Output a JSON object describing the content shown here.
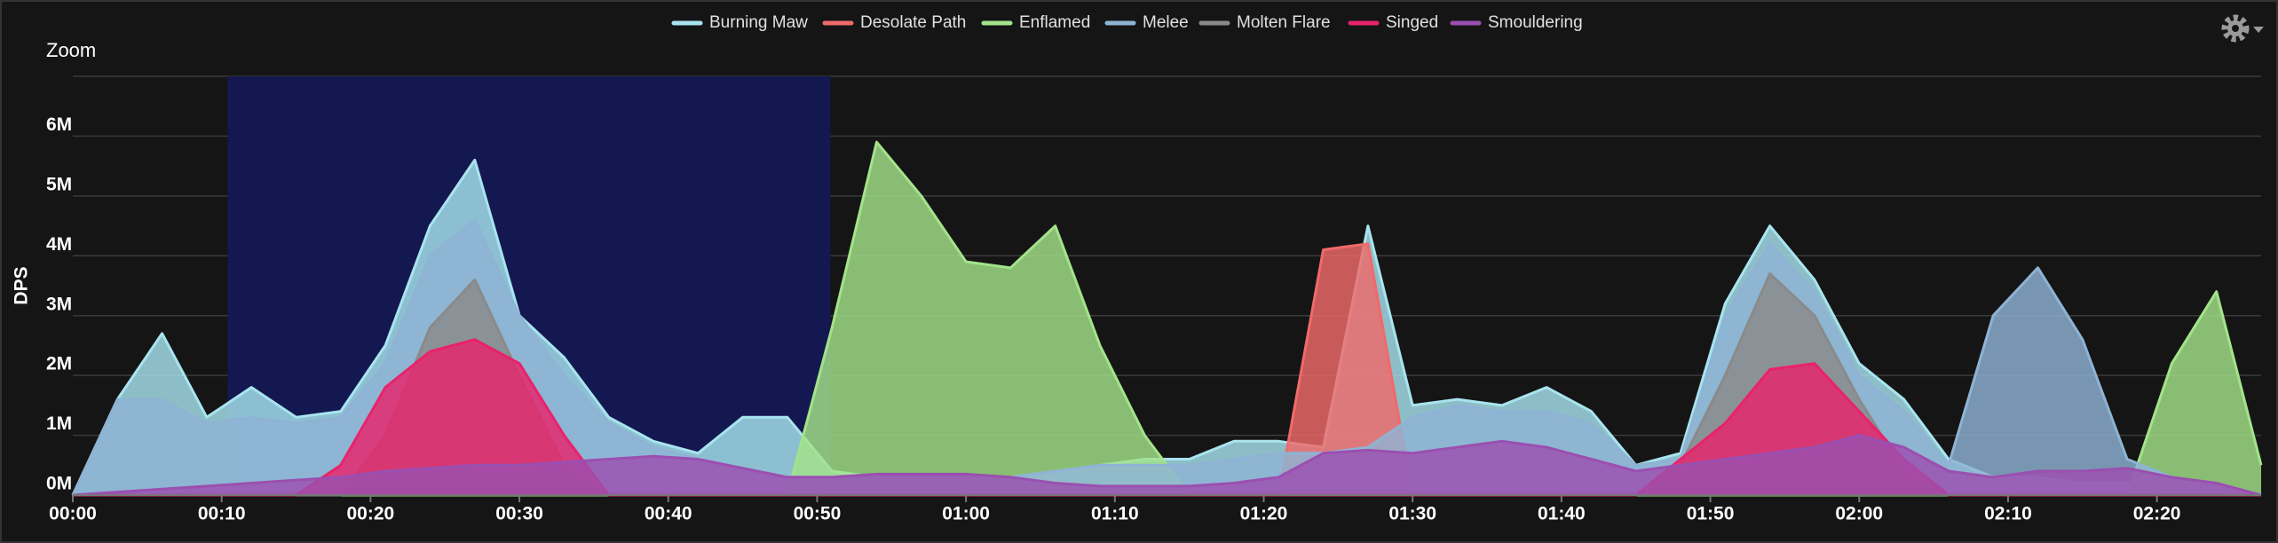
{
  "chart_data": {
    "type": "area",
    "zoom_label": "Zoom",
    "y_label": "DPS",
    "selection": [
      10.4,
      50.9
    ],
    "xlim": [
      0,
      147
    ],
    "ylim": [
      0,
      7000000.0
    ],
    "xticks": [
      {
        "value": 0,
        "label": "00:00"
      },
      {
        "value": 10,
        "label": "00:10"
      },
      {
        "value": 20,
        "label": "00:20"
      },
      {
        "value": 30,
        "label": "00:30"
      },
      {
        "value": 40,
        "label": "00:40"
      },
      {
        "value": 50,
        "label": "00:50"
      },
      {
        "value": 60,
        "label": "01:00"
      },
      {
        "value": 70,
        "label": "01:10"
      },
      {
        "value": 80,
        "label": "01:20"
      },
      {
        "value": 90,
        "label": "01:30"
      },
      {
        "value": 100,
        "label": "01:40"
      },
      {
        "value": 110,
        "label": "01:50"
      },
      {
        "value": 120,
        "label": "02:00"
      },
      {
        "value": 130,
        "label": "02:10"
      },
      {
        "value": 140,
        "label": "02:20"
      }
    ],
    "yticks": [
      {
        "value": 0,
        "label": "0M"
      },
      {
        "value": 1000000.0,
        "label": "1M"
      },
      {
        "value": 2000000.0,
        "label": "2M"
      },
      {
        "value": 3000000.0,
        "label": "3M"
      },
      {
        "value": 4000000.0,
        "label": "4M"
      },
      {
        "value": 5000000.0,
        "label": "5M"
      },
      {
        "value": 6000000.0,
        "label": "6M"
      }
    ],
    "grid": true,
    "x": [
      0,
      3,
      6,
      9,
      12,
      15,
      18,
      21,
      24,
      27,
      30,
      33,
      36,
      39,
      42,
      45,
      48,
      51,
      54,
      57,
      60,
      63,
      66,
      69,
      72,
      75,
      78,
      81,
      84,
      87,
      90,
      93,
      96,
      99,
      102,
      105,
      108,
      111,
      114,
      117,
      120,
      123,
      126,
      129,
      132,
      135,
      138,
      141,
      144,
      147
    ],
    "series": [
      {
        "name": "Burning Maw",
        "color": "#a8e4ef",
        "values": [
          0,
          1600000.0,
          2700000.0,
          1300000.0,
          1800000.0,
          1300000.0,
          1400000.0,
          2500000.0,
          4500000.0,
          5600000.0,
          3000000.0,
          2300000.0,
          1300000.0,
          900000.0,
          700000.0,
          1300000.0,
          1300000.0,
          400000.0,
          300000.0,
          300000.0,
          300000.0,
          300000.0,
          400000.0,
          500000.0,
          600000.0,
          600000.0,
          900000.0,
          900000.0,
          800000.0,
          4500000.0,
          1500000.0,
          1600000.0,
          1500000.0,
          1800000.0,
          1400000.0,
          500000.0,
          700000.0,
          3200000.0,
          4500000.0,
          3600000.0,
          2200000.0,
          1600000.0,
          600000.0,
          300000.0,
          300000.0,
          200000.0,
          200000.0,
          100000.0,
          100000.0,
          0
        ]
      },
      {
        "name": "Desolate Path",
        "color": "#f06a6a",
        "values": [
          0,
          0,
          0,
          0,
          0,
          0,
          0,
          0,
          0,
          0,
          0,
          0,
          0,
          0,
          0,
          0,
          0,
          0,
          0,
          0,
          0,
          0,
          0,
          0,
          0,
          0,
          0,
          0,
          4100000.0,
          4200000.0,
          0,
          0,
          0,
          0,
          0,
          0,
          0,
          0,
          0,
          0,
          0,
          0,
          0,
          0,
          0,
          0,
          0,
          0,
          0,
          0
        ]
      },
      {
        "name": "Enflamed",
        "color": "#a3e38a",
        "values": [
          0,
          0,
          0,
          0,
          0,
          0,
          0,
          0,
          0,
          0,
          0,
          0,
          0,
          0,
          0,
          0,
          0,
          2800000.0,
          5900000.0,
          5000000.0,
          3900000.0,
          3800000.0,
          4500000.0,
          2500000.0,
          1000000.0,
          0,
          0,
          0,
          0,
          0,
          0,
          0,
          0,
          0,
          0,
          0,
          0,
          0,
          0,
          0,
          0,
          0,
          0,
          0,
          0,
          0,
          0,
          2200000.0,
          3400000.0,
          500000.0
        ]
      },
      {
        "name": "Melee",
        "color": "#8fb3d4",
        "values": [
          0,
          1600000.0,
          1600000.0,
          1200000.0,
          1300000.0,
          1200000.0,
          1300000.0,
          2200000.0,
          4000000.0,
          4600000.0,
          3000000.0,
          2000000.0,
          1200000.0,
          800000.0,
          600000.0,
          400000.0,
          300000.0,
          300000.0,
          300000.0,
          300000.0,
          300000.0,
          300000.0,
          400000.0,
          500000.0,
          500000.0,
          500000.0,
          600000.0,
          700000.0,
          700000.0,
          800000.0,
          1300000.0,
          1500000.0,
          1400000.0,
          1400000.0,
          1200000.0,
          500000.0,
          600000.0,
          3000000.0,
          4200000.0,
          3400000.0,
          2000000.0,
          1400000.0,
          500000.0,
          3000000.0,
          3800000.0,
          2600000.0,
          600000.0,
          300000.0,
          200000.0,
          0
        ]
      },
      {
        "name": "Molten Flare",
        "color": "#8a8a8a",
        "values": [
          0,
          0,
          0,
          0,
          0,
          0,
          0,
          1000000.0,
          2800000.0,
          3600000.0,
          2000000.0,
          500000.0,
          0,
          0,
          0,
          0,
          0,
          0,
          0,
          0,
          0,
          0,
          0,
          0,
          0,
          0,
          0,
          0,
          0,
          0,
          0,
          0,
          0,
          0,
          0,
          0,
          500000.0,
          2000000.0,
          3700000.0,
          3000000.0,
          1600000.0,
          400000.0,
          0,
          0,
          0,
          0,
          0,
          0,
          0,
          0
        ]
      },
      {
        "name": "Singed",
        "color": "#e8236b",
        "values": [
          0,
          0,
          0,
          0,
          0,
          0,
          500000.0,
          1800000.0,
          2400000.0,
          2600000.0,
          2200000.0,
          1000000.0,
          0,
          0,
          0,
          0,
          0,
          0,
          0,
          0,
          0,
          0,
          0,
          0,
          0,
          0,
          0,
          0,
          0,
          0,
          0,
          0,
          0,
          0,
          0,
          0,
          600000.0,
          1200000.0,
          2100000.0,
          2200000.0,
          1400000.0,
          600000.0,
          0,
          0,
          0,
          0,
          0,
          0,
          0,
          0
        ]
      },
      {
        "name": "Smouldering",
        "color": "#9b4fb0",
        "values": [
          0,
          50000.0,
          100000.0,
          150000.0,
          200000.0,
          250000.0,
          300000.0,
          400000.0,
          450000.0,
          500000.0,
          500000.0,
          550000.0,
          600000.0,
          650000.0,
          600000.0,
          450000.0,
          300000.0,
          300000.0,
          350000.0,
          350000.0,
          350000.0,
          300000.0,
          200000.0,
          150000.0,
          150000.0,
          150000.0,
          200000.0,
          300000.0,
          700000.0,
          750000.0,
          700000.0,
          800000.0,
          900000.0,
          800000.0,
          600000.0,
          400000.0,
          500000.0,
          600000.0,
          700000.0,
          800000.0,
          1000000.0,
          800000.0,
          400000.0,
          300000.0,
          400000.0,
          400000.0,
          450000.0,
          300000.0,
          200000.0,
          0
        ]
      }
    ]
  }
}
